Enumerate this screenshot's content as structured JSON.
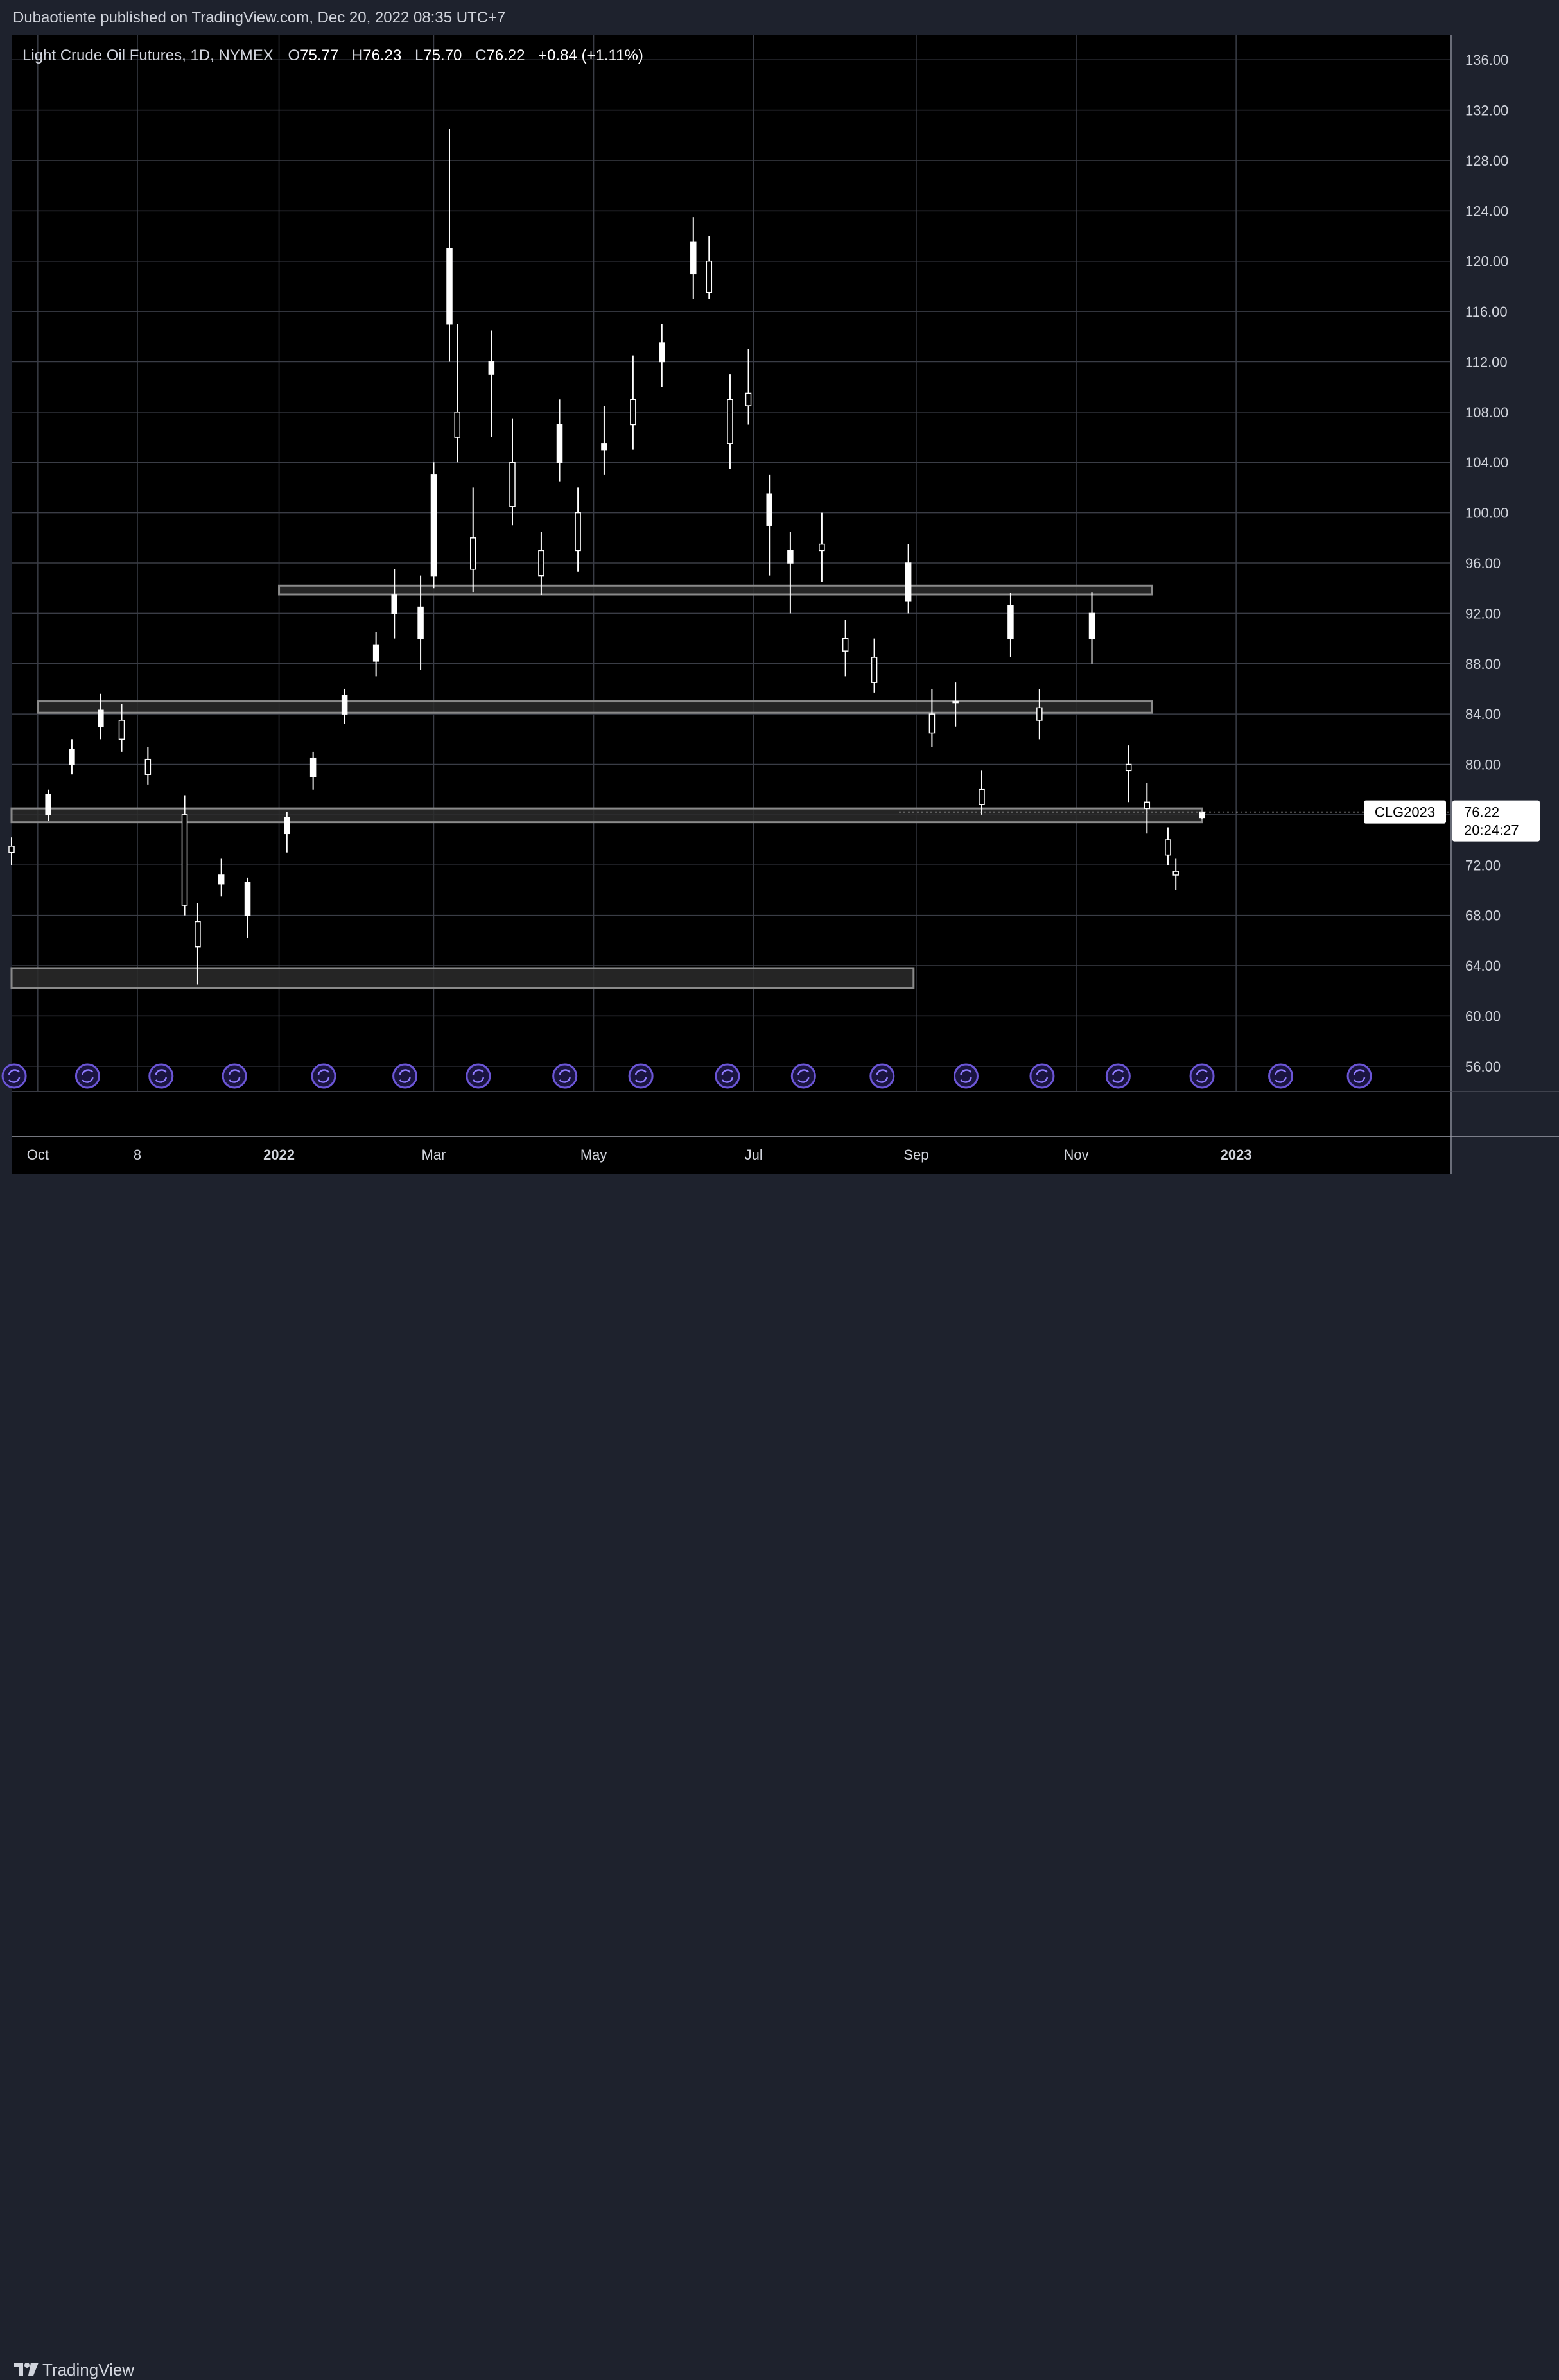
{
  "header": {
    "publish_text": "Dubaotiente published on TradingView.com, Dec 20, 2022 08:35 UTC+7"
  },
  "legend": {
    "symbol": "Light Crude Oil Futures, 1D, NYMEX",
    "open_label": "O",
    "open": "75.77",
    "high_label": "H",
    "high": "76.23",
    "low_label": "L",
    "low": "75.70",
    "close_label": "C",
    "close": "76.22",
    "change": "+0.84 (+1.11%)"
  },
  "price_tag": {
    "symbol": "CLG2023",
    "price": "76.22",
    "countdown": "20:24:27"
  },
  "footer": {
    "brand": "TradingView"
  },
  "colors": {
    "page_bg": "#1e222d",
    "chart_bg": "#000000",
    "grid": "#3a3d46",
    "candle": "#ffffff",
    "zone_stroke": "#8a8a8a",
    "zone_fill": "#2b2b2b",
    "event_icon": "#6b55d6",
    "axis_text": "#d1d4dc"
  },
  "icons": {
    "event_marker": "dividend-refresh-icon",
    "logo": "tradingview-logo-icon"
  },
  "chart_data": {
    "type": "candlestick",
    "title": "Light Crude Oil Futures, 1D, NYMEX",
    "ylim": [
      54,
      138
    ],
    "y_ticks": [
      "136.00",
      "132.00",
      "128.00",
      "124.00",
      "120.00",
      "116.00",
      "112.00",
      "108.00",
      "104.00",
      "100.00",
      "96.00",
      "92.00",
      "88.00",
      "84.00",
      "80.00",
      "76.00",
      "72.00",
      "68.00",
      "64.00",
      "60.00",
      "56.00"
    ],
    "x_ticks": [
      "Oct",
      "8",
      "2022",
      "Mar",
      "May",
      "Jul",
      "Sep",
      "Nov",
      "2023"
    ],
    "grid": true,
    "last_price": 76.22,
    "zones": [
      {
        "from": "2021-09-21",
        "to": "2022-08-31",
        "low": 62.2,
        "high": 63.8
      },
      {
        "from": "2021-09-21",
        "to": "2022-12-19",
        "low": 75.4,
        "high": 76.5
      },
      {
        "from": "2021-10-01",
        "to": "2022-11-30",
        "low": 84.1,
        "high": 85.0
      },
      {
        "from": "2022-01-01",
        "to": "2022-11-30",
        "low": 93.5,
        "high": 94.2
      }
    ],
    "event_markers": [
      "2021-09-22",
      "2021-10-20",
      "2021-11-17",
      "2021-12-15",
      "2022-01-18",
      "2022-02-18",
      "2022-03-18",
      "2022-04-20",
      "2022-05-19",
      "2022-06-21",
      "2022-07-20",
      "2022-08-19",
      "2022-09-20",
      "2022-10-19",
      "2022-11-17",
      "2022-12-19",
      "2023-01-18",
      "2023-02-17"
    ],
    "series": [
      {
        "name": "CLG2023",
        "points": [
          {
            "date": "2021-09-21",
            "o": 73.5,
            "h": 74.2,
            "l": 72.0,
            "c": 73.0
          },
          {
            "date": "2021-10-05",
            "o": 76.0,
            "h": 78.0,
            "l": 75.5,
            "c": 77.6
          },
          {
            "date": "2021-10-14",
            "o": 80.0,
            "h": 82.0,
            "l": 79.2,
            "c": 81.2
          },
          {
            "date": "2021-10-25",
            "o": 83.0,
            "h": 85.6,
            "l": 82.0,
            "c": 84.3
          },
          {
            "date": "2021-11-02",
            "o": 83.5,
            "h": 84.8,
            "l": 81.0,
            "c": 82.0
          },
          {
            "date": "2021-11-12",
            "o": 80.4,
            "h": 81.4,
            "l": 78.4,
            "c": 79.2
          },
          {
            "date": "2021-11-26",
            "o": 76.0,
            "h": 77.5,
            "l": 68.0,
            "c": 68.8
          },
          {
            "date": "2021-12-01",
            "o": 67.5,
            "h": 69.0,
            "l": 62.5,
            "c": 65.5
          },
          {
            "date": "2021-12-10",
            "o": 70.5,
            "h": 72.5,
            "l": 69.5,
            "c": 71.2
          },
          {
            "date": "2021-12-20",
            "o": 68.0,
            "h": 71.0,
            "l": 66.2,
            "c": 70.6
          },
          {
            "date": "2022-01-04",
            "o": 74.5,
            "h": 76.2,
            "l": 73.0,
            "c": 75.8
          },
          {
            "date": "2022-01-14",
            "o": 79.0,
            "h": 81.0,
            "l": 78.0,
            "c": 80.5
          },
          {
            "date": "2022-01-26",
            "o": 84.0,
            "h": 86.0,
            "l": 83.2,
            "c": 85.5
          },
          {
            "date": "2022-02-07",
            "o": 88.2,
            "h": 90.5,
            "l": 87.0,
            "c": 89.5
          },
          {
            "date": "2022-02-14",
            "o": 92.0,
            "h": 95.5,
            "l": 90.0,
            "c": 93.5
          },
          {
            "date": "2022-02-24",
            "o": 90.0,
            "h": 95.0,
            "l": 87.5,
            "c": 92.5
          },
          {
            "date": "2022-03-01",
            "o": 95.0,
            "h": 104.0,
            "l": 94.0,
            "c": 103.0
          },
          {
            "date": "2022-03-07",
            "o": 115.0,
            "h": 130.5,
            "l": 112.0,
            "c": 121.0
          },
          {
            "date": "2022-03-10",
            "o": 108.0,
            "h": 115.0,
            "l": 104.0,
            "c": 106.0
          },
          {
            "date": "2022-03-16",
            "o": 98.0,
            "h": 102.0,
            "l": 93.7,
            "c": 95.5
          },
          {
            "date": "2022-03-23",
            "o": 111.0,
            "h": 114.5,
            "l": 106.0,
            "c": 112.0
          },
          {
            "date": "2022-03-31",
            "o": 104.0,
            "h": 107.5,
            "l": 99.0,
            "c": 100.5
          },
          {
            "date": "2022-04-11",
            "o": 97.0,
            "h": 98.5,
            "l": 93.5,
            "c": 95.0
          },
          {
            "date": "2022-04-18",
            "o": 104.0,
            "h": 109.0,
            "l": 102.5,
            "c": 107.0
          },
          {
            "date": "2022-04-25",
            "o": 100.0,
            "h": 102.0,
            "l": 95.3,
            "c": 97.0
          },
          {
            "date": "2022-05-05",
            "o": 105.0,
            "h": 108.5,
            "l": 103.0,
            "c": 105.5
          },
          {
            "date": "2022-05-16",
            "o": 109.0,
            "h": 112.5,
            "l": 105.0,
            "c": 107.0
          },
          {
            "date": "2022-05-27",
            "o": 112.0,
            "h": 115.0,
            "l": 110.0,
            "c": 113.5
          },
          {
            "date": "2022-06-08",
            "o": 119.0,
            "h": 123.5,
            "l": 117.0,
            "c": 121.5
          },
          {
            "date": "2022-06-14",
            "o": 120.0,
            "h": 122.0,
            "l": 117.0,
            "c": 117.5
          },
          {
            "date": "2022-06-22",
            "o": 109.0,
            "h": 111.0,
            "l": 103.5,
            "c": 105.5
          },
          {
            "date": "2022-06-29",
            "o": 109.5,
            "h": 113.0,
            "l": 107.0,
            "c": 108.5
          },
          {
            "date": "2022-07-07",
            "o": 99.0,
            "h": 103.0,
            "l": 95.0,
            "c": 101.5
          },
          {
            "date": "2022-07-15",
            "o": 96.0,
            "h": 98.5,
            "l": 92.0,
            "c": 97.0
          },
          {
            "date": "2022-07-27",
            "o": 97.5,
            "h": 100.0,
            "l": 94.5,
            "c": 97.0
          },
          {
            "date": "2022-08-05",
            "o": 90.0,
            "h": 91.5,
            "l": 87.0,
            "c": 89.0
          },
          {
            "date": "2022-08-16",
            "o": 88.5,
            "h": 90.0,
            "l": 85.7,
            "c": 86.5
          },
          {
            "date": "2022-08-29",
            "o": 93.0,
            "h": 97.5,
            "l": 92.0,
            "c": 96.0
          },
          {
            "date": "2022-09-07",
            "o": 84.0,
            "h": 86.0,
            "l": 81.4,
            "c": 82.5
          },
          {
            "date": "2022-09-16",
            "o": 85.0,
            "h": 86.5,
            "l": 83.0,
            "c": 85.0
          },
          {
            "date": "2022-09-26",
            "o": 78.0,
            "h": 79.5,
            "l": 76.0,
            "c": 76.8
          },
          {
            "date": "2022-10-07",
            "o": 90.0,
            "h": 93.6,
            "l": 88.5,
            "c": 92.6
          },
          {
            "date": "2022-10-18",
            "o": 84.5,
            "h": 86.0,
            "l": 82.0,
            "c": 83.5
          },
          {
            "date": "2022-11-07",
            "o": 90.0,
            "h": 93.7,
            "l": 88.0,
            "c": 92.0
          },
          {
            "date": "2022-11-21",
            "o": 80.0,
            "h": 81.5,
            "l": 77.0,
            "c": 79.5
          },
          {
            "date": "2022-11-28",
            "o": 77.0,
            "h": 78.5,
            "l": 74.5,
            "c": 76.5
          },
          {
            "date": "2022-12-06",
            "o": 74.0,
            "h": 75.0,
            "l": 72.0,
            "c": 72.8
          },
          {
            "date": "2022-12-09",
            "o": 71.5,
            "h": 72.5,
            "l": 70.0,
            "c": 71.2
          },
          {
            "date": "2022-12-19",
            "o": 75.77,
            "h": 76.23,
            "l": 75.7,
            "c": 76.22
          }
        ]
      }
    ]
  }
}
